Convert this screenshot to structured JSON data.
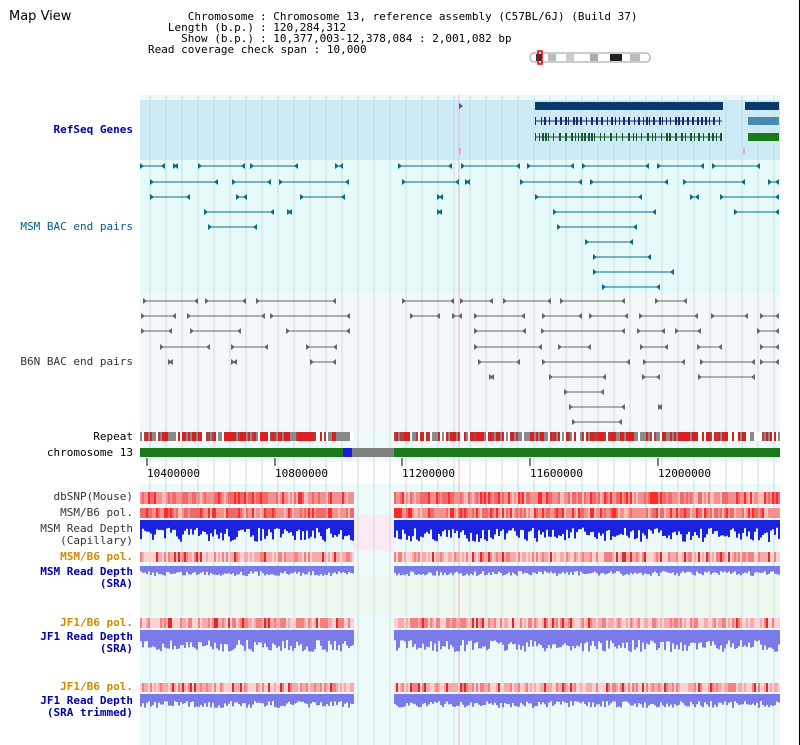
{
  "view": {
    "title": "Map View",
    "info": [
      {
        "key": "Chromosome",
        "value": "Chromosome 13, reference assembly (C57BL/6J) (Build 37)"
      },
      {
        "key": "Length (b.p.)",
        "value": "120,284,312"
      },
      {
        "key": "Show (b.p.)",
        "value": "10,377,003-12,378,084 : 2,001,082 bp"
      },
      {
        "key": "Read coverage check span",
        "value": "10,000"
      }
    ]
  },
  "tracks": {
    "refseq": "RefSeq Genes",
    "msm_bac": "MSM BAC end pairs",
    "b6n_bac": "B6N BAC end pairs",
    "repeat": "Repeat",
    "chromosome": "chromosome 13",
    "dbsnp": "dbSNP(Mouse)",
    "msm_b6_pol_1": "MSM/B6 pol.",
    "msm_read_depth_cap": [
      "MSM Read Depth",
      "(Capillary)"
    ],
    "msm_b6_pol_2": "MSM/B6 pol.",
    "msm_read_depth_sra": [
      "MSM Read Depth",
      "(SRA)"
    ],
    "jf1_b6_pol_1": "JF1/B6 pol.",
    "jf1_read_depth_sra": [
      "JF1 Read Depth",
      "(SRA)"
    ],
    "jf1_b6_pol_2": "JF1/B6 pol.",
    "jf1_read_depth_trim": [
      "JF1 Read Depth",
      "(SRA trimmed)"
    ]
  },
  "ruler": {
    "ticks": [
      "10400000",
      "10800000",
      "11200000",
      "11600000",
      "12000000"
    ]
  },
  "colors": {
    "bac_msm": "#0a6a8a",
    "bac_b6n": "#666666",
    "gene": "#0a3a6a",
    "chromosome": "#1a7a1a",
    "snp": "#e05050",
    "depth_dark": "#1a22e0",
    "depth_light": "#7a7ae8"
  }
}
